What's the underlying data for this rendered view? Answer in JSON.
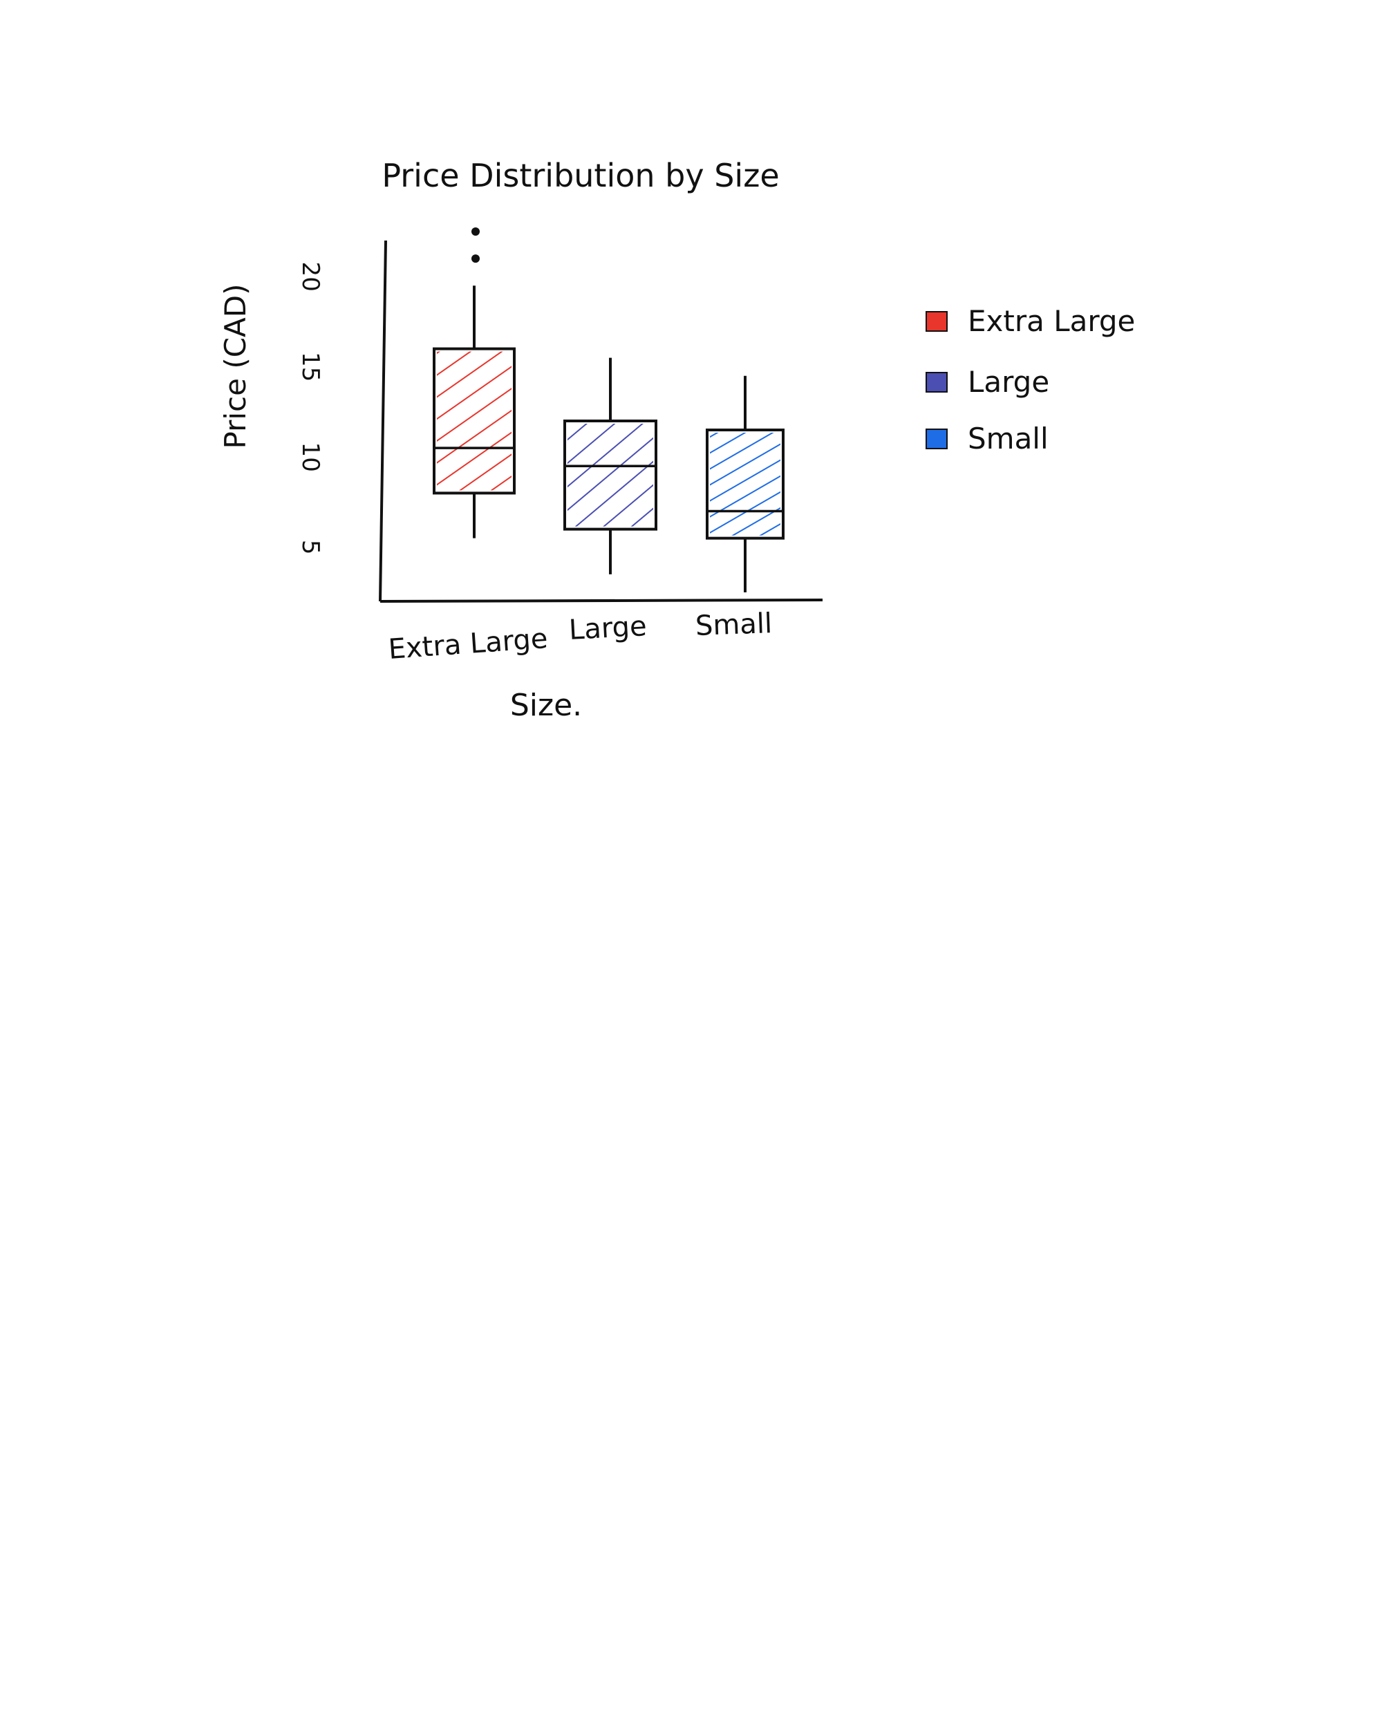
{
  "chart_data": {
    "type": "box",
    "title": "Price Distribution by Size",
    "xlabel": "Size.",
    "ylabel": "Price (CAD)",
    "yticks": [
      5,
      10,
      15,
      20
    ],
    "ylim": [
      2,
      22
    ],
    "grid": false,
    "legend_position": "right",
    "legend": [
      {
        "label": "Extra Large",
        "color": "#e8362d"
      },
      {
        "label": "Large",
        "color": "#4b4fb2"
      },
      {
        "label": "Small",
        "color": "#1f6de6"
      }
    ],
    "categories": [
      "Extra Large",
      "Large",
      "Small"
    ],
    "series": [
      {
        "category": "Extra Large",
        "color": "#e8362d",
        "whisker_low": 5.5,
        "q1": 8.0,
        "median": 10.5,
        "q3": 16.0,
        "whisker_high": 19.5,
        "outliers": [
          21.0,
          22.5
        ]
      },
      {
        "category": "Large",
        "color": "#4b4fb2",
        "whisker_low": 3.5,
        "q1": 6.0,
        "median": 9.5,
        "q3": 12.0,
        "whisker_high": 15.5,
        "outliers": []
      },
      {
        "category": "Small",
        "color": "#1f6de6",
        "whisker_low": 2.5,
        "q1": 5.5,
        "median": 7.0,
        "q3": 11.5,
        "whisker_high": 14.5,
        "outliers": []
      }
    ]
  }
}
